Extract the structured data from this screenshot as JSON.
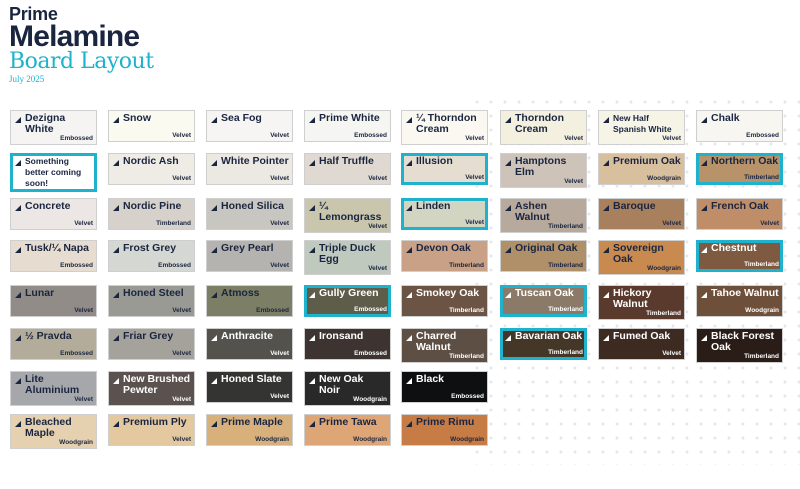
{
  "header": {
    "brand_line1": "Prime",
    "brand_line2": "Melamine",
    "title": "Board Layout",
    "date": "July 2025"
  },
  "colors": {
    "accent": "#1fb2cc",
    "brand_navy": "#1a2540"
  },
  "rows": [
    [
      {
        "name": "Dezigna White",
        "finish": "Embossed",
        "color": "#f5f4f2"
      },
      {
        "name": "Snow",
        "finish": "Velvet",
        "color": "#fbfaf0"
      },
      {
        "name": "Sea Fog",
        "finish": "Velvet",
        "color": "#f7f5f3"
      },
      {
        "name": "Prime White",
        "finish": "Embossed",
        "color": "#f5f6f2"
      },
      {
        "name": "¼ Thorndon Cream",
        "finish": "Velvet",
        "color": "#faf8f0"
      },
      {
        "name": "Thorndon Cream",
        "finish": "Velvet",
        "color": "#f4f0e0"
      },
      {
        "name": "New Half Spanish White",
        "finish": "Velvet",
        "color": "#f6f3e7",
        "small": true
      },
      {
        "name": "Chalk",
        "finish": "Embossed",
        "color": "#f7f6f1"
      }
    ],
    [
      {
        "name": "Something better coming soon!",
        "finish": "",
        "color": "#ffffff",
        "highlight": true,
        "small": true
      },
      {
        "name": "Nordic Ash",
        "finish": "Velvet",
        "color": "#efebe5"
      },
      {
        "name": "White Pointer",
        "finish": "Velvet",
        "color": "#ece8e2"
      },
      {
        "name": "Half Truffle",
        "finish": "Velvet",
        "color": "#e0d9d1"
      },
      {
        "name": "Illusion",
        "finish": "Velvet",
        "color": "#e5ddd0",
        "highlight": true
      },
      {
        "name": "Hamptons Elm",
        "finish": "Velvet",
        "color": "#cdc3b8"
      },
      {
        "name": "Premium Oak",
        "finish": "Woodgrain",
        "color": "#d8bf9e"
      },
      {
        "name": "Northern Oak",
        "finish": "Timberland",
        "color": "#b8936a",
        "highlight": true
      }
    ],
    [
      {
        "name": "Concrete",
        "finish": "Velvet",
        "color": "#ece7e4"
      },
      {
        "name": "Nordic Pine",
        "finish": "Timberland",
        "color": "#d6d1ca"
      },
      {
        "name": "Honed Silica",
        "finish": "Velvet",
        "color": "#c8c6c1"
      },
      {
        "name": "¼ Lemongrass",
        "finish": "Velvet",
        "color": "#c9c6ad"
      },
      {
        "name": "Linden",
        "finish": "Velvet",
        "color": "#d3d5c3",
        "highlight": true
      },
      {
        "name": "Ashen Walnut",
        "finish": "Timberland",
        "color": "#b7aa9c"
      },
      {
        "name": "Baroque",
        "finish": "Velvet",
        "color": "#a9805e"
      },
      {
        "name": "French Oak",
        "finish": "Velvet",
        "color": "#bf8e68"
      }
    ],
    [
      {
        "name": "Tusk/¼ Napa",
        "finish": "Embossed",
        "color": "#e6ddd0"
      },
      {
        "name": "Frost Grey",
        "finish": "Embossed",
        "color": "#d4d7d2"
      },
      {
        "name": "Grey Pearl",
        "finish": "Velvet",
        "color": "#b5b3b0"
      },
      {
        "name": "Triple Duck Egg",
        "finish": "Velvet",
        "color": "#bfc9be"
      },
      {
        "name": "Devon Oak",
        "finish": "Timberland",
        "color": "#c9a186"
      },
      {
        "name": "Original Oak",
        "finish": "Timberland",
        "color": "#b09068"
      },
      {
        "name": "Sovereign Oak",
        "finish": "Woodgrain",
        "color": "#c98a50"
      },
      {
        "name": "Chestnut",
        "finish": "Timberland",
        "color": "#7d5a40",
        "highlight": true,
        "light": true
      }
    ],
    [
      {
        "name": "Lunar",
        "finish": "Velvet",
        "color": "#918c87"
      },
      {
        "name": "Honed Steel",
        "finish": "Velvet",
        "color": "#9a9a95"
      },
      {
        "name": "Atmoss",
        "finish": "Embossed",
        "color": "#7c7e65"
      },
      {
        "name": "Gully Green",
        "finish": "Embossed",
        "color": "#5e5d4a",
        "highlight": true,
        "light": true
      },
      {
        "name": "Smokey Oak",
        "finish": "Timberland",
        "color": "#6b5444",
        "light": true
      },
      {
        "name": "Tuscan Oak",
        "finish": "Timberland",
        "color": "#8c7a68",
        "highlight": true,
        "light": true
      },
      {
        "name": "Hickory Walnut",
        "finish": "Timberland",
        "color": "#5a3a2c",
        "light": true
      },
      {
        "name": "Tahoe Walnut",
        "finish": "Woodgrain",
        "color": "#6e4f3a",
        "light": true
      }
    ],
    [
      {
        "name": "½ Pravda",
        "finish": "Embossed",
        "color": "#b3ac9a"
      },
      {
        "name": "Friar Grey",
        "finish": "Velvet",
        "color": "#a5a29c"
      },
      {
        "name": "Anthracite",
        "finish": "Velvet",
        "color": "#54524d",
        "light": true
      },
      {
        "name": "Ironsand",
        "finish": "Embossed",
        "color": "#3d3432",
        "light": true
      },
      {
        "name": "Charred Walnut",
        "finish": "Timberland",
        "color": "#5e4f45",
        "light": true
      },
      {
        "name": "Bavarian Oak",
        "finish": "Timberland",
        "color": "#453728",
        "highlight": true,
        "light": true
      },
      {
        "name": "Fumed Oak",
        "finish": "Velvet",
        "color": "#3d2a20",
        "light": true
      },
      {
        "name": "Black Forest Oak",
        "finish": "Timberland",
        "color": "#2a1c16",
        "light": true
      }
    ],
    [
      {
        "name": "Lite Aluminium",
        "finish": "Velvet",
        "color": "#a6a7ab"
      },
      {
        "name": "New Brushed Pewter",
        "finish": "Velvet",
        "color": "#5b5250",
        "light": true
      },
      {
        "name": "Honed Slate",
        "finish": "Velvet",
        "color": "#343433",
        "light": true
      },
      {
        "name": "New Oak Noir",
        "finish": "Woodgrain",
        "color": "#2a2929",
        "light": true
      },
      {
        "name": "Black",
        "finish": "Embossed",
        "color": "#0e0f10",
        "light": true
      }
    ],
    [
      {
        "name": "Bleached Maple",
        "finish": "Woodgrain",
        "color": "#e5d0b0"
      },
      {
        "name": "Premium Ply",
        "finish": "Velvet",
        "color": "#e4c9a0"
      },
      {
        "name": "Prime Maple",
        "finish": "Woodgrain",
        "color": "#d8b07c"
      },
      {
        "name": "Prime Tawa",
        "finish": "Woodgrain",
        "color": "#dea676"
      },
      {
        "name": "Prime Rimu",
        "finish": "Woodgrain",
        "color": "#c77b45"
      }
    ]
  ]
}
